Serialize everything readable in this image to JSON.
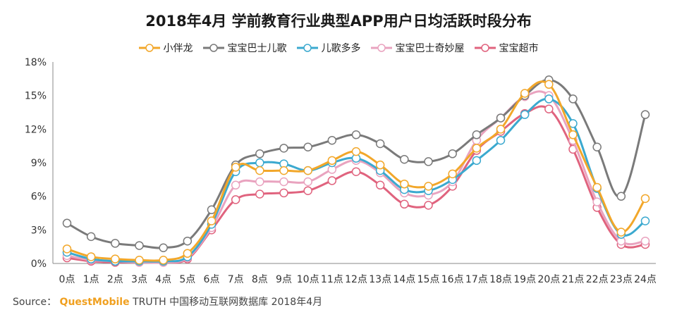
{
  "source": {
    "prefix": "Source：",
    "brand": "QuestMobile",
    "suffix": "TRUTH 中国移动互联网数据库 2018年4月"
  },
  "chart_data": {
    "type": "line",
    "title": "2018年4月 学前教育行业典型APP用户日均活跃时段分布",
    "xlabel": "",
    "ylabel": "",
    "legend_position": "top",
    "grid": false,
    "ylim": [
      0,
      18
    ],
    "y_ticks": [
      "0%",
      "3%",
      "6%",
      "9%",
      "12%",
      "15%",
      "18%"
    ],
    "y_tick_values": [
      0,
      3,
      6,
      9,
      12,
      15,
      18
    ],
    "x": [
      "0点",
      "1点",
      "2点",
      "3点",
      "4点",
      "5点",
      "6点",
      "7点",
      "8点",
      "9点",
      "10点",
      "11点",
      "12点",
      "13点",
      "14点",
      "15点",
      "16点",
      "17点",
      "18点",
      "19点",
      "20点",
      "21点",
      "22点",
      "23点",
      "24点"
    ],
    "series": [
      {
        "name": "小伴龙",
        "color": "#f2a72a",
        "values": [
          1.3,
          0.6,
          0.4,
          0.3,
          0.3,
          0.9,
          3.8,
          8.6,
          8.3,
          8.3,
          8.3,
          9.2,
          10.0,
          8.8,
          7.1,
          6.9,
          8.0,
          10.3,
          12.0,
          15.2,
          16.0,
          11.5,
          6.8,
          2.8,
          5.8
        ]
      },
      {
        "name": "宝宝巴士儿歌",
        "color": "#7a7a7a",
        "values": [
          3.6,
          2.4,
          1.8,
          1.6,
          1.4,
          2.0,
          4.8,
          8.8,
          9.8,
          10.3,
          10.4,
          11.0,
          11.5,
          10.7,
          9.3,
          9.1,
          9.8,
          11.5,
          13.0,
          15.0,
          16.4,
          14.7,
          10.4,
          6.0,
          13.3
        ]
      },
      {
        "name": "儿歌多多",
        "color": "#3ba9cf",
        "values": [
          1.0,
          0.4,
          0.2,
          0.2,
          0.2,
          0.6,
          3.5,
          8.2,
          9.0,
          8.9,
          8.3,
          9.0,
          9.4,
          8.3,
          6.6,
          6.5,
          7.5,
          9.2,
          11.0,
          13.3,
          14.7,
          12.5,
          6.7,
          2.6,
          3.8
        ]
      },
      {
        "name": "宝宝巴士奇妙屋",
        "color": "#e9a3bf",
        "values": [
          0.7,
          0.3,
          0.2,
          0.1,
          0.1,
          0.5,
          3.2,
          7.0,
          7.3,
          7.3,
          7.3,
          8.4,
          9.2,
          8.1,
          6.3,
          6.1,
          7.3,
          11.0,
          13.0,
          14.9,
          15.0,
          11.0,
          5.5,
          2.0,
          2.0
        ]
      },
      {
        "name": "宝宝超市",
        "color": "#e0637e",
        "values": [
          0.5,
          0.2,
          0.1,
          0.1,
          0.1,
          0.4,
          3.0,
          5.7,
          6.2,
          6.3,
          6.5,
          7.4,
          8.2,
          7.0,
          5.3,
          5.2,
          6.9,
          10.1,
          11.8,
          13.4,
          13.8,
          10.2,
          5.0,
          1.7,
          1.7
        ]
      }
    ]
  }
}
